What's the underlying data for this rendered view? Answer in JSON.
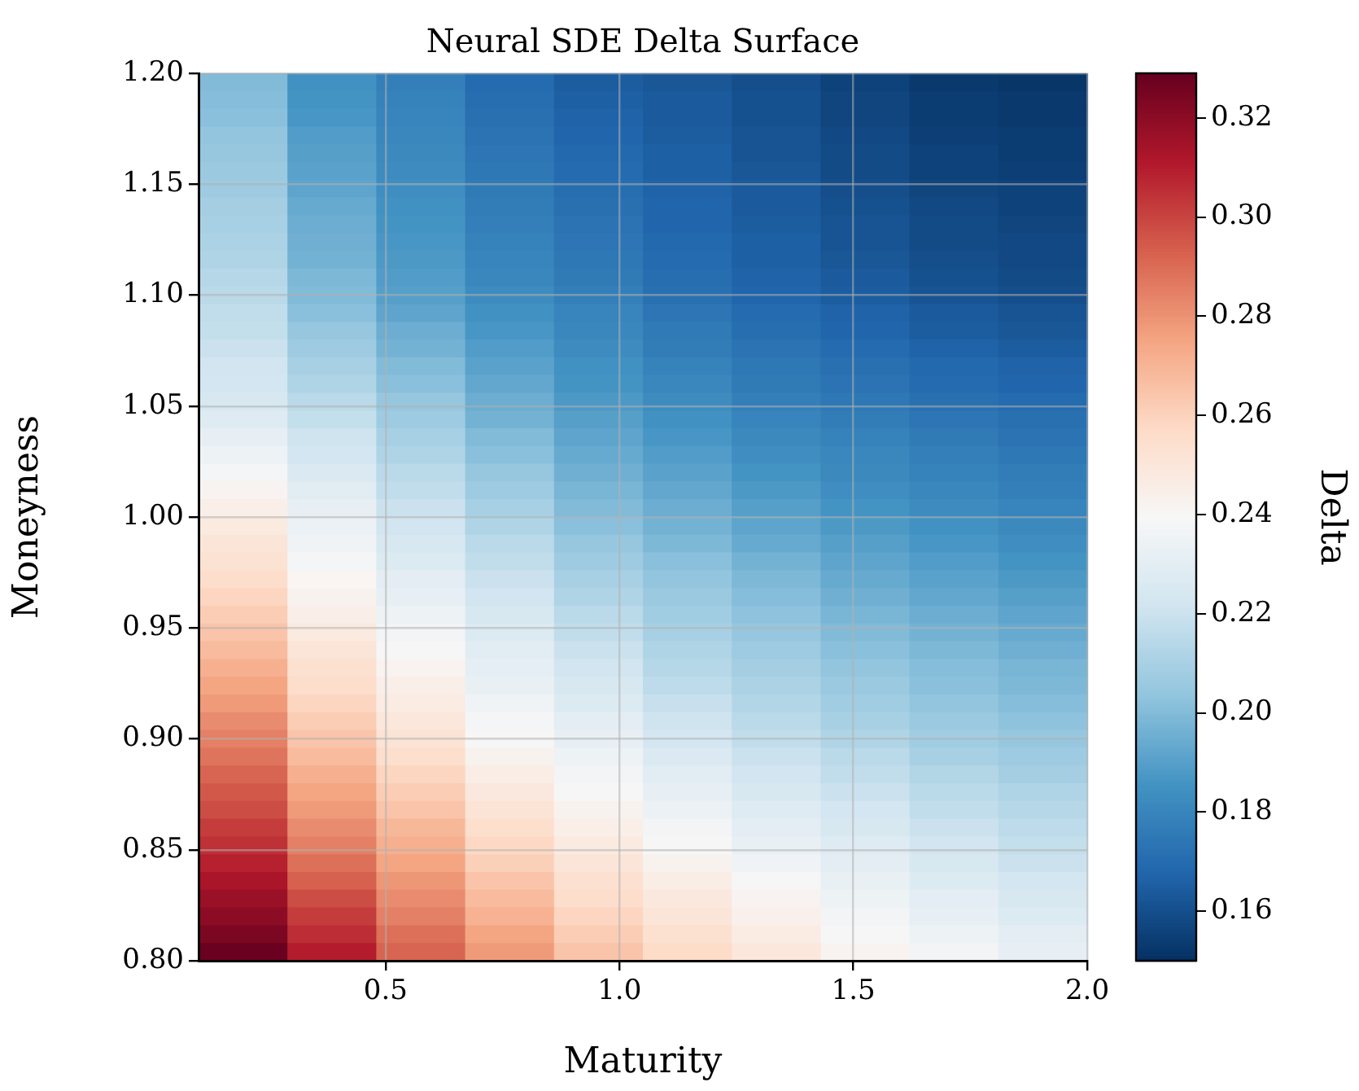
{
  "chart_data": {
    "type": "heatmap",
    "title": "Neural SDE Delta Surface",
    "xlabel": "Maturity",
    "ylabel": "Moneyness",
    "clabel": "Delta",
    "cells": [
      [
        0.2,
        0.185,
        0.178,
        0.17,
        0.165,
        0.163,
        0.16,
        0.156,
        0.153,
        0.152
      ],
      [
        0.201,
        0.186,
        0.179,
        0.171,
        0.166,
        0.164,
        0.161,
        0.157,
        0.154,
        0.153
      ],
      [
        0.202,
        0.187,
        0.18,
        0.172,
        0.167,
        0.164,
        0.161,
        0.157,
        0.154,
        0.153
      ],
      [
        0.204,
        0.189,
        0.181,
        0.173,
        0.168,
        0.165,
        0.162,
        0.158,
        0.155,
        0.154
      ],
      [
        0.205,
        0.19,
        0.182,
        0.174,
        0.169,
        0.166,
        0.162,
        0.159,
        0.156,
        0.154
      ],
      [
        0.206,
        0.191,
        0.183,
        0.175,
        0.17,
        0.166,
        0.163,
        0.159,
        0.156,
        0.155
      ],
      [
        0.207,
        0.192,
        0.184,
        0.176,
        0.171,
        0.167,
        0.164,
        0.16,
        0.157,
        0.156
      ],
      [
        0.209,
        0.194,
        0.185,
        0.177,
        0.172,
        0.168,
        0.164,
        0.161,
        0.158,
        0.156
      ],
      [
        0.21,
        0.195,
        0.186,
        0.178,
        0.173,
        0.168,
        0.165,
        0.162,
        0.159,
        0.157
      ],
      [
        0.211,
        0.196,
        0.187,
        0.179,
        0.174,
        0.169,
        0.166,
        0.162,
        0.159,
        0.158
      ],
      [
        0.212,
        0.197,
        0.188,
        0.18,
        0.175,
        0.17,
        0.166,
        0.163,
        0.16,
        0.158
      ],
      [
        0.214,
        0.199,
        0.189,
        0.181,
        0.176,
        0.171,
        0.167,
        0.164,
        0.161,
        0.159
      ],
      [
        0.215,
        0.2,
        0.19,
        0.183,
        0.178,
        0.172,
        0.168,
        0.165,
        0.162,
        0.16
      ],
      [
        0.217,
        0.202,
        0.192,
        0.185,
        0.18,
        0.174,
        0.17,
        0.167,
        0.164,
        0.162
      ],
      [
        0.218,
        0.205,
        0.195,
        0.187,
        0.181,
        0.176,
        0.171,
        0.168,
        0.165,
        0.163
      ],
      [
        0.22,
        0.207,
        0.197,
        0.189,
        0.183,
        0.177,
        0.173,
        0.17,
        0.167,
        0.165
      ],
      [
        0.222,
        0.21,
        0.2,
        0.191,
        0.185,
        0.179,
        0.175,
        0.172,
        0.169,
        0.167
      ],
      [
        0.223,
        0.212,
        0.202,
        0.193,
        0.186,
        0.181,
        0.176,
        0.173,
        0.17,
        0.168
      ],
      [
        0.225,
        0.215,
        0.205,
        0.195,
        0.188,
        0.183,
        0.178,
        0.175,
        0.172,
        0.17
      ],
      [
        0.228,
        0.218,
        0.207,
        0.197,
        0.19,
        0.185,
        0.18,
        0.177,
        0.174,
        0.172
      ],
      [
        0.232,
        0.221,
        0.21,
        0.2,
        0.192,
        0.187,
        0.182,
        0.179,
        0.176,
        0.173
      ],
      [
        0.235,
        0.223,
        0.212,
        0.202,
        0.194,
        0.189,
        0.184,
        0.181,
        0.178,
        0.175
      ],
      [
        0.238,
        0.226,
        0.215,
        0.205,
        0.196,
        0.191,
        0.186,
        0.182,
        0.179,
        0.177
      ],
      [
        0.242,
        0.229,
        0.217,
        0.207,
        0.198,
        0.193,
        0.188,
        0.184,
        0.181,
        0.178
      ],
      [
        0.245,
        0.232,
        0.22,
        0.21,
        0.2,
        0.195,
        0.19,
        0.186,
        0.183,
        0.18
      ],
      [
        0.248,
        0.234,
        0.222,
        0.212,
        0.202,
        0.197,
        0.192,
        0.188,
        0.185,
        0.182
      ],
      [
        0.251,
        0.236,
        0.225,
        0.215,
        0.205,
        0.199,
        0.194,
        0.19,
        0.187,
        0.184
      ],
      [
        0.253,
        0.238,
        0.227,
        0.217,
        0.207,
        0.202,
        0.197,
        0.192,
        0.189,
        0.186
      ],
      [
        0.256,
        0.241,
        0.23,
        0.22,
        0.21,
        0.204,
        0.199,
        0.194,
        0.191,
        0.188
      ],
      [
        0.259,
        0.243,
        0.232,
        0.222,
        0.212,
        0.206,
        0.201,
        0.196,
        0.193,
        0.19
      ],
      [
        0.262,
        0.245,
        0.235,
        0.225,
        0.215,
        0.208,
        0.203,
        0.198,
        0.195,
        0.192
      ],
      [
        0.265,
        0.248,
        0.237,
        0.227,
        0.217,
        0.21,
        0.205,
        0.2,
        0.197,
        0.194
      ],
      [
        0.268,
        0.251,
        0.24,
        0.229,
        0.22,
        0.212,
        0.207,
        0.202,
        0.199,
        0.196
      ],
      [
        0.272,
        0.254,
        0.242,
        0.231,
        0.222,
        0.214,
        0.209,
        0.204,
        0.201,
        0.198
      ],
      [
        0.275,
        0.256,
        0.245,
        0.233,
        0.225,
        0.216,
        0.211,
        0.206,
        0.202,
        0.199
      ],
      [
        0.278,
        0.259,
        0.247,
        0.236,
        0.227,
        0.219,
        0.213,
        0.208,
        0.204,
        0.201
      ],
      [
        0.282,
        0.262,
        0.25,
        0.238,
        0.23,
        0.221,
        0.215,
        0.21,
        0.206,
        0.203
      ],
      [
        0.285,
        0.265,
        0.252,
        0.24,
        0.232,
        0.223,
        0.217,
        0.212,
        0.208,
        0.205
      ],
      [
        0.288,
        0.268,
        0.255,
        0.243,
        0.235,
        0.226,
        0.22,
        0.215,
        0.21,
        0.207
      ],
      [
        0.292,
        0.272,
        0.259,
        0.246,
        0.237,
        0.229,
        0.222,
        0.217,
        0.213,
        0.209
      ],
      [
        0.295,
        0.275,
        0.262,
        0.249,
        0.24,
        0.232,
        0.225,
        0.22,
        0.215,
        0.212
      ],
      [
        0.298,
        0.278,
        0.265,
        0.252,
        0.243,
        0.234,
        0.228,
        0.223,
        0.217,
        0.214
      ],
      [
        0.302,
        0.282,
        0.269,
        0.255,
        0.245,
        0.237,
        0.23,
        0.225,
        0.22,
        0.216
      ],
      [
        0.305,
        0.285,
        0.272,
        0.258,
        0.248,
        0.24,
        0.233,
        0.228,
        0.222,
        0.218
      ],
      [
        0.309,
        0.289,
        0.275,
        0.261,
        0.251,
        0.243,
        0.236,
        0.23,
        0.225,
        0.22
      ],
      [
        0.313,
        0.293,
        0.279,
        0.265,
        0.254,
        0.246,
        0.239,
        0.233,
        0.227,
        0.223
      ],
      [
        0.317,
        0.298,
        0.282,
        0.268,
        0.256,
        0.249,
        0.242,
        0.235,
        0.23,
        0.225
      ],
      [
        0.32,
        0.302,
        0.285,
        0.271,
        0.259,
        0.251,
        0.244,
        0.237,
        0.232,
        0.227
      ],
      [
        0.324,
        0.306,
        0.289,
        0.275,
        0.262,
        0.254,
        0.247,
        0.24,
        0.235,
        0.23
      ],
      [
        0.328,
        0.31,
        0.292,
        0.278,
        0.265,
        0.257,
        0.25,
        0.242,
        0.237,
        0.232
      ]
    ],
    "xlim": [
      0.1,
      2.0
    ],
    "ylim": [
      0.8,
      1.2
    ],
    "xticks": [
      0.5,
      {
        "value": 1,
        "label": "1.0"
      },
      1.5,
      {
        "value": 2,
        "label": "2.0"
      }
    ],
    "yticks": [
      {
        "value": 0.8,
        "label": "0.80"
      },
      0.85,
      {
        "value": 0.9,
        "label": "0.90"
      },
      0.95,
      {
        "value": 1,
        "label": "1.00"
      },
      1.05,
      {
        "value": 1.1,
        "label": "1.10"
      },
      1.15,
      {
        "value": 1.2,
        "label": "1.20"
      }
    ],
    "clim": [
      0.15,
      0.329
    ],
    "cticks": [
      0.16,
      0.18,
      {
        "value": 0.2,
        "label": "0.20"
      },
      0.22,
      0.24,
      0.26,
      0.28,
      {
        "value": 0.3,
        "label": "0.30"
      },
      0.32
    ],
    "grid": true
  }
}
